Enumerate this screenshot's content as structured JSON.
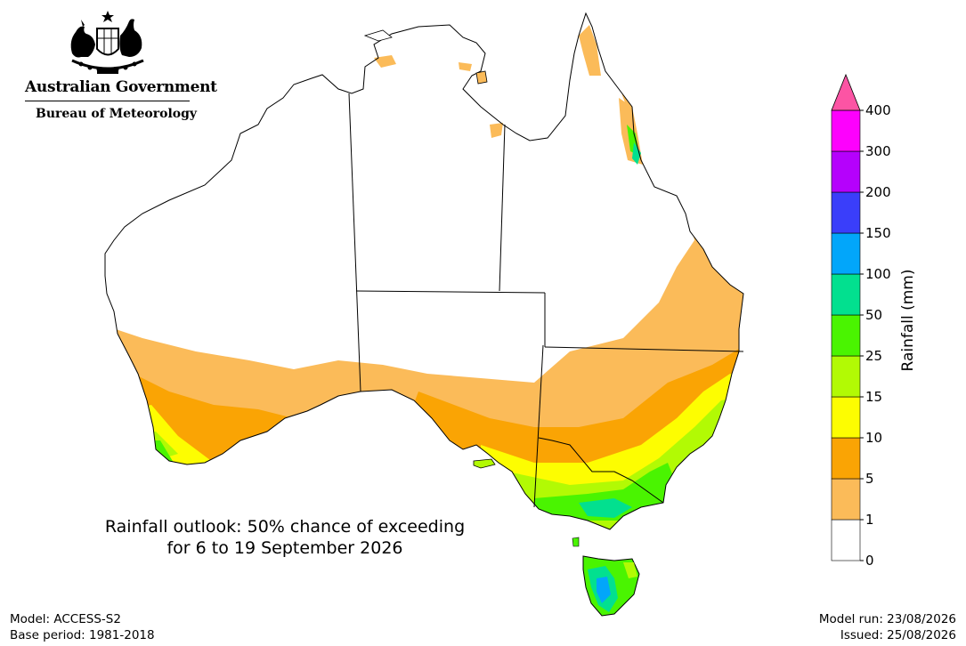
{
  "header": {
    "government": "Australian Government",
    "agency": "Bureau of Meteorology"
  },
  "title": {
    "line1": "Rainfall outlook: 50% chance of exceeding",
    "line2": "for 6 to 19 September 2026"
  },
  "footer": {
    "model": "Model: ACCESS-S2",
    "base_period": "Base period: 1981-2018",
    "model_run": "Model run: 23/08/2026",
    "issued": "Issued: 25/08/2026"
  },
  "colorbar": {
    "label": "Rainfall (mm)",
    "ticks": [
      "0",
      "1",
      "5",
      "10",
      "15",
      "25",
      "50",
      "100",
      "150",
      "200",
      "300",
      "400"
    ],
    "colors": [
      "#ffffff",
      "#fbbb59",
      "#faa404",
      "#fdfd01",
      "#b2fa04",
      "#4af401",
      "#02e08f",
      "#02a6fa",
      "#3a3efa",
      "#b501fc",
      "#fd01fd",
      "#fc54a4"
    ]
  }
}
